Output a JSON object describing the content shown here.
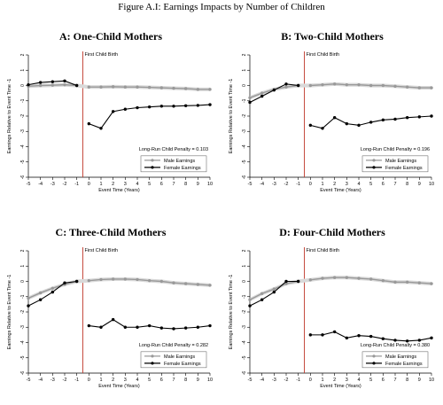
{
  "figure_title": "Figure A.I: Earnings Impacts by Number of Children",
  "colors": {
    "male": "#999999",
    "female": "#000000",
    "event_line": "#c0392b",
    "ci_band": "#d9d9d9"
  },
  "chart_data": [
    {
      "type": "line",
      "title": "A: One-Child Mothers",
      "xlabel": "Event Time (Years)",
      "ylabel": "Earnings Relative to Event Time -1",
      "xlim": [
        -5,
        10
      ],
      "ylim": [
        -6,
        2
      ],
      "xticks": [
        -5,
        -4,
        -3,
        -2,
        -1,
        0,
        1,
        2,
        3,
        4,
        5,
        6,
        7,
        8,
        9,
        10
      ],
      "yticks": [
        -6,
        -5,
        -4,
        -3,
        -2,
        -1,
        0,
        1,
        2
      ],
      "event_label": "First Child Birth",
      "annotation": "Long-Run Child Penalty = 0.103",
      "legend": "bottom-right",
      "x": [
        -5,
        -4,
        -3,
        -2,
        -1,
        0,
        1,
        2,
        3,
        4,
        5,
        6,
        7,
        8,
        9,
        10
      ],
      "series": [
        {
          "name": "Male Earnings",
          "values": [
            -0.05,
            0.0,
            0.02,
            0.05,
            0.0,
            -0.1,
            -0.1,
            -0.08,
            -0.1,
            -0.1,
            -0.12,
            -0.15,
            -0.18,
            -0.2,
            -0.25,
            -0.25
          ]
        },
        {
          "name": "Female Earnings",
          "values": [
            0.05,
            0.2,
            0.25,
            0.3,
            0.0,
            -2.5,
            -2.8,
            -1.7,
            -1.55,
            -1.45,
            -1.4,
            -1.35,
            -1.35,
            -1.32,
            -1.3,
            -1.25
          ]
        }
      ]
    },
    {
      "type": "line",
      "title": "B: Two-Child Mothers",
      "xlabel": "Event Time (Years)",
      "ylabel": "Earnings Relative to Event Time -1",
      "xlim": [
        -5,
        10
      ],
      "ylim": [
        -6,
        2
      ],
      "xticks": [
        -5,
        -4,
        -3,
        -2,
        -1,
        0,
        1,
        2,
        3,
        4,
        5,
        6,
        7,
        8,
        9,
        10
      ],
      "yticks": [
        -6,
        -5,
        -4,
        -3,
        -2,
        -1,
        0,
        1,
        2
      ],
      "event_label": "First Child Birth",
      "annotation": "Long-Run Child Penalty = 0.196",
      "legend": "bottom-right",
      "x": [
        -5,
        -4,
        -3,
        -2,
        -1,
        0,
        1,
        2,
        3,
        4,
        5,
        6,
        7,
        8,
        9,
        10
      ],
      "series": [
        {
          "name": "Male Earnings",
          "values": [
            -0.8,
            -0.5,
            -0.25,
            -0.1,
            0.0,
            0.0,
            0.05,
            0.1,
            0.05,
            0.05,
            0.0,
            0.0,
            -0.05,
            -0.1,
            -0.15,
            -0.15
          ]
        },
        {
          "name": "Female Earnings",
          "values": [
            -1.1,
            -0.7,
            -0.3,
            0.1,
            0.0,
            -2.6,
            -2.8,
            -2.1,
            -2.5,
            -2.6,
            -2.4,
            -2.25,
            -2.2,
            -2.1,
            -2.05,
            -2.0
          ]
        }
      ]
    },
    {
      "type": "line",
      "title": "C: Three-Child Mothers",
      "xlabel": "Event Time (Years)",
      "ylabel": "Earnings Relative to Event Time -1",
      "xlim": [
        -5,
        10
      ],
      "ylim": [
        -6,
        2
      ],
      "xticks": [
        -5,
        -4,
        -3,
        -2,
        -1,
        0,
        1,
        2,
        3,
        4,
        5,
        6,
        7,
        8,
        9,
        10
      ],
      "yticks": [
        -6,
        -5,
        -4,
        -3,
        -2,
        -1,
        0,
        1,
        2
      ],
      "event_label": "First Child Birth",
      "annotation": "Long-Run Child Penalty = 0.282",
      "legend": "bottom-right",
      "x": [
        -5,
        -4,
        -3,
        -2,
        -1,
        0,
        1,
        2,
        3,
        4,
        5,
        6,
        7,
        8,
        9,
        10
      ],
      "series": [
        {
          "name": "Male Earnings",
          "values": [
            -1.1,
            -0.75,
            -0.45,
            -0.2,
            0.0,
            0.05,
            0.12,
            0.15,
            0.15,
            0.12,
            0.05,
            0.0,
            -0.1,
            -0.15,
            -0.2,
            -0.25
          ]
        },
        {
          "name": "Female Earnings",
          "values": [
            -1.6,
            -1.2,
            -0.7,
            -0.1,
            0.0,
            -2.9,
            -3.0,
            -2.5,
            -3.0,
            -3.0,
            -2.9,
            -3.05,
            -3.1,
            -3.05,
            -3.0,
            -2.9
          ]
        }
      ]
    },
    {
      "type": "line",
      "title": "D: Four-Child Mothers",
      "xlabel": "Event Time (Years)",
      "ylabel": "Earnings Relative to Event Time -1",
      "xlim": [
        -5,
        10
      ],
      "ylim": [
        -6,
        2
      ],
      "xticks": [
        -5,
        -4,
        -3,
        -2,
        -1,
        0,
        1,
        2,
        3,
        4,
        5,
        6,
        7,
        8,
        9,
        10
      ],
      "yticks": [
        -6,
        -5,
        -4,
        -3,
        -2,
        -1,
        0,
        1,
        2
      ],
      "event_label": "First Child Birth",
      "annotation": "Long-Run Child Penalty = 0.380",
      "legend": "bottom-right",
      "x": [
        -5,
        -4,
        -3,
        -2,
        -1,
        0,
        1,
        2,
        3,
        4,
        5,
        6,
        7,
        8,
        9,
        10
      ],
      "series": [
        {
          "name": "Male Earnings",
          "values": [
            -1.2,
            -0.8,
            -0.5,
            -0.15,
            0.0,
            0.1,
            0.2,
            0.25,
            0.25,
            0.2,
            0.15,
            0.05,
            -0.05,
            -0.05,
            -0.1,
            -0.15
          ]
        },
        {
          "name": "Female Earnings",
          "values": [
            -1.6,
            -1.2,
            -0.7,
            0.0,
            0.0,
            -3.5,
            -3.5,
            -3.3,
            -3.7,
            -3.55,
            -3.6,
            -3.75,
            -3.85,
            -3.9,
            -3.85,
            -3.7
          ]
        }
      ]
    }
  ]
}
